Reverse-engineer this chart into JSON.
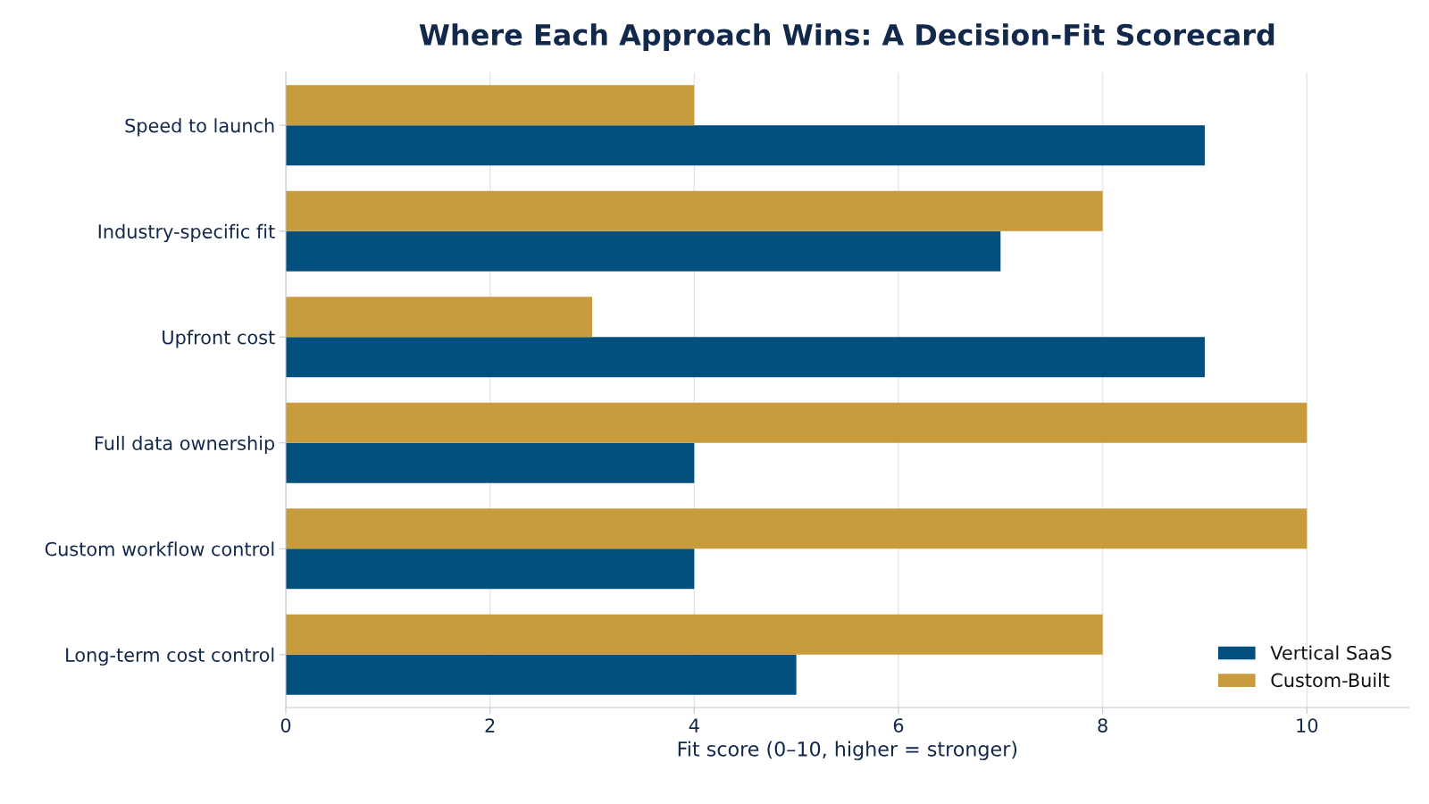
{
  "chart_data": {
    "type": "bar",
    "orientation": "horizontal",
    "title": "Where Each Approach Wins: A Decision-Fit Scorecard",
    "xlabel": "Fit score (0–10, higher = stronger)",
    "categories": [
      "Speed to launch",
      "Industry-specific fit",
      "Upfront cost",
      "Full data ownership",
      "Custom workflow control",
      "Long-term cost control"
    ],
    "series": [
      {
        "name": "Vertical SaaS",
        "color": "#03507e",
        "values": [
          9,
          7,
          9,
          4,
          4,
          5
        ]
      },
      {
        "name": "Custom-Built",
        "color": "#c89b3c",
        "values": [
          4,
          8,
          3,
          10,
          10,
          8
        ]
      }
    ],
    "xlim": [
      0,
      11
    ],
    "xticks": [
      0,
      2,
      4,
      6,
      8,
      10
    ],
    "grid": "x",
    "legend": "bottom right"
  }
}
